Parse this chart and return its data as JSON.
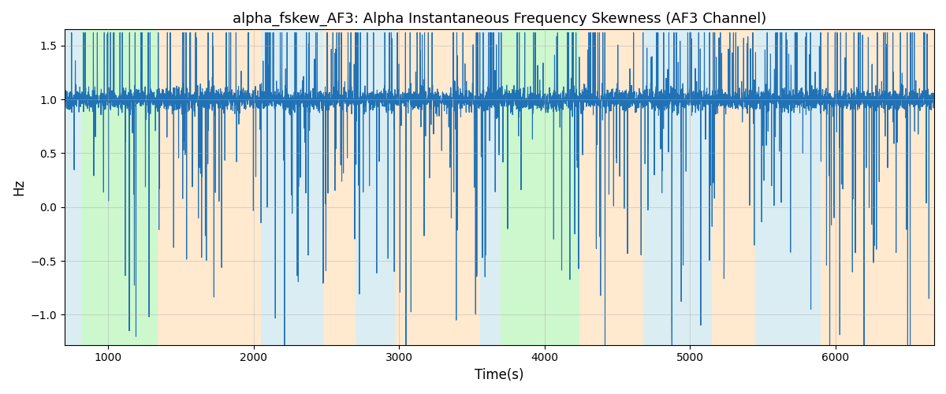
{
  "title": "alpha_fskew_AF3: Alpha Instantaneous Frequency Skewness (AF3 Channel)",
  "xlabel": "Time(s)",
  "ylabel": "Hz",
  "xlim": [
    700,
    6680
  ],
  "ylim": [
    -1.28,
    1.65
  ],
  "yticks": [
    -1.0,
    -0.5,
    0.0,
    0.5,
    1.0,
    1.5
  ],
  "xticks": [
    1000,
    2000,
    3000,
    4000,
    5000,
    6000
  ],
  "line_color": "#2171b5",
  "line_width": 0.8,
  "bg_color": "#ffffff",
  "grid_color": "#aaaaaa",
  "bands": [
    {
      "xmin": 700,
      "xmax": 820,
      "color": "#add8e6",
      "alpha": 0.45
    },
    {
      "xmin": 820,
      "xmax": 1340,
      "color": "#90ee90",
      "alpha": 0.45
    },
    {
      "xmin": 1340,
      "xmax": 2050,
      "color": "#ffd8a8",
      "alpha": 0.55
    },
    {
      "xmin": 2050,
      "xmax": 2480,
      "color": "#add8e6",
      "alpha": 0.45
    },
    {
      "xmin": 2480,
      "xmax": 2700,
      "color": "#ffd8a8",
      "alpha": 0.55
    },
    {
      "xmin": 2700,
      "xmax": 2980,
      "color": "#add8e6",
      "alpha": 0.45
    },
    {
      "xmin": 2980,
      "xmax": 3560,
      "color": "#ffd8a8",
      "alpha": 0.55
    },
    {
      "xmin": 3560,
      "xmax": 3700,
      "color": "#add8e6",
      "alpha": 0.45
    },
    {
      "xmin": 3700,
      "xmax": 4240,
      "color": "#90ee90",
      "alpha": 0.45
    },
    {
      "xmin": 4240,
      "xmax": 4680,
      "color": "#ffd8a8",
      "alpha": 0.55
    },
    {
      "xmin": 4680,
      "xmax": 5150,
      "color": "#add8e6",
      "alpha": 0.45
    },
    {
      "xmin": 5150,
      "xmax": 5450,
      "color": "#ffd8a8",
      "alpha": 0.55
    },
    {
      "xmin": 5450,
      "xmax": 5900,
      "color": "#add8e6",
      "alpha": 0.45
    },
    {
      "xmin": 5900,
      "xmax": 6680,
      "color": "#ffd8a8",
      "alpha": 0.55
    }
  ],
  "seed": 7,
  "n_points": 5980
}
